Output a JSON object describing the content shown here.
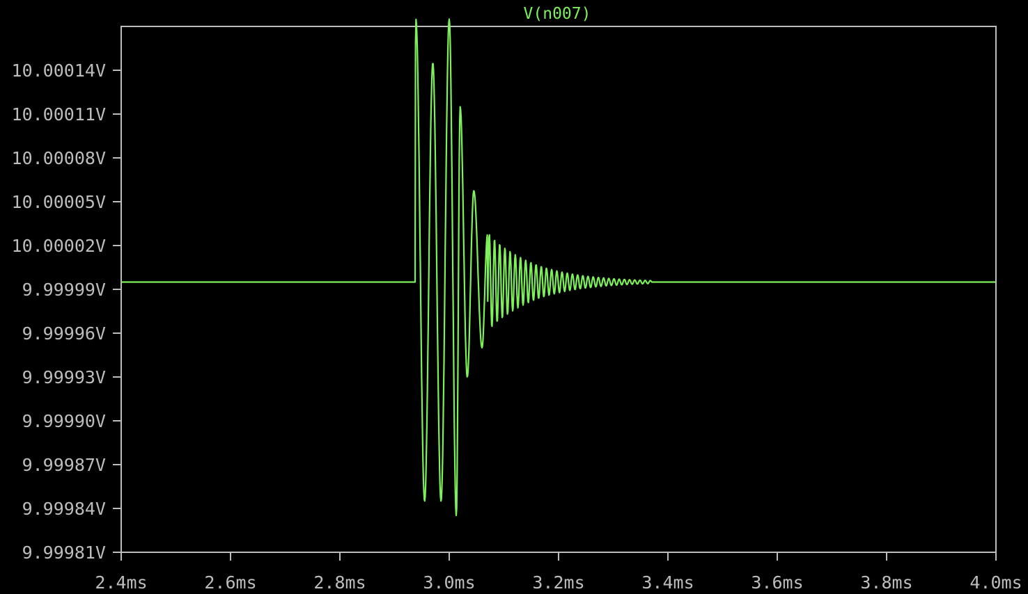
{
  "chart_data": {
    "type": "line",
    "title": "V(n007)",
    "series": [
      {
        "name": "V(n007)",
        "color": "#7ef05a",
        "description_points": {
          "x_ms": [
            2.4,
            2.936,
            2.939,
            2.955,
            2.97,
            2.985,
            3.0,
            3.013,
            3.02,
            3.033,
            3.045,
            3.06,
            3.07,
            3.1,
            3.15,
            3.2,
            3.25,
            3.3,
            3.37,
            4.0
          ],
          "y_V": [
            9.999995,
            9.999995,
            10.000175,
            9.999845,
            10.000145,
            9.999845,
            10.000175,
            9.999835,
            10.000115,
            9.99993,
            10.0000575,
            9.99995,
            10.0000275,
            10.0000235,
            10.000014,
            10.000008,
            10.000003,
            10.0000005,
            9.999995,
            9.999995
          ]
        }
      }
    ],
    "xlim": [
      2.4,
      4.0
    ],
    "ylim": [
      9.99981,
      10.00017
    ],
    "x_ticks": [
      "2.4ms",
      "2.6ms",
      "2.8ms",
      "3.0ms",
      "3.2ms",
      "3.4ms",
      "3.6ms",
      "3.8ms",
      "4.0ms"
    ],
    "x_tick_values": [
      2.4,
      2.6,
      2.8,
      3.0,
      3.2,
      3.4,
      3.6,
      3.8,
      4.0
    ],
    "y_ticks": [
      "10.00014V",
      "10.00011V",
      "10.00008V",
      "10.00005V",
      "10.00002V",
      "9.99999V",
      "9.99996V",
      "9.99993V",
      "9.99990V",
      "9.99987V",
      "9.99984V",
      "9.99981V"
    ],
    "y_tick_values": [
      10.00014,
      10.00011,
      10.00008,
      10.00005,
      10.00002,
      9.99999,
      9.99996,
      9.99993,
      9.9999,
      9.99987,
      9.99984,
      9.99981
    ],
    "grid": false,
    "background": "#000000",
    "axis_color": "#bdbdbd",
    "ringing": {
      "start_ms": 2.938,
      "end_ms": 3.37,
      "baseline_V": 9.999995,
      "decay_tau_ms": 0.085,
      "period_ms": 0.0095
    }
  }
}
